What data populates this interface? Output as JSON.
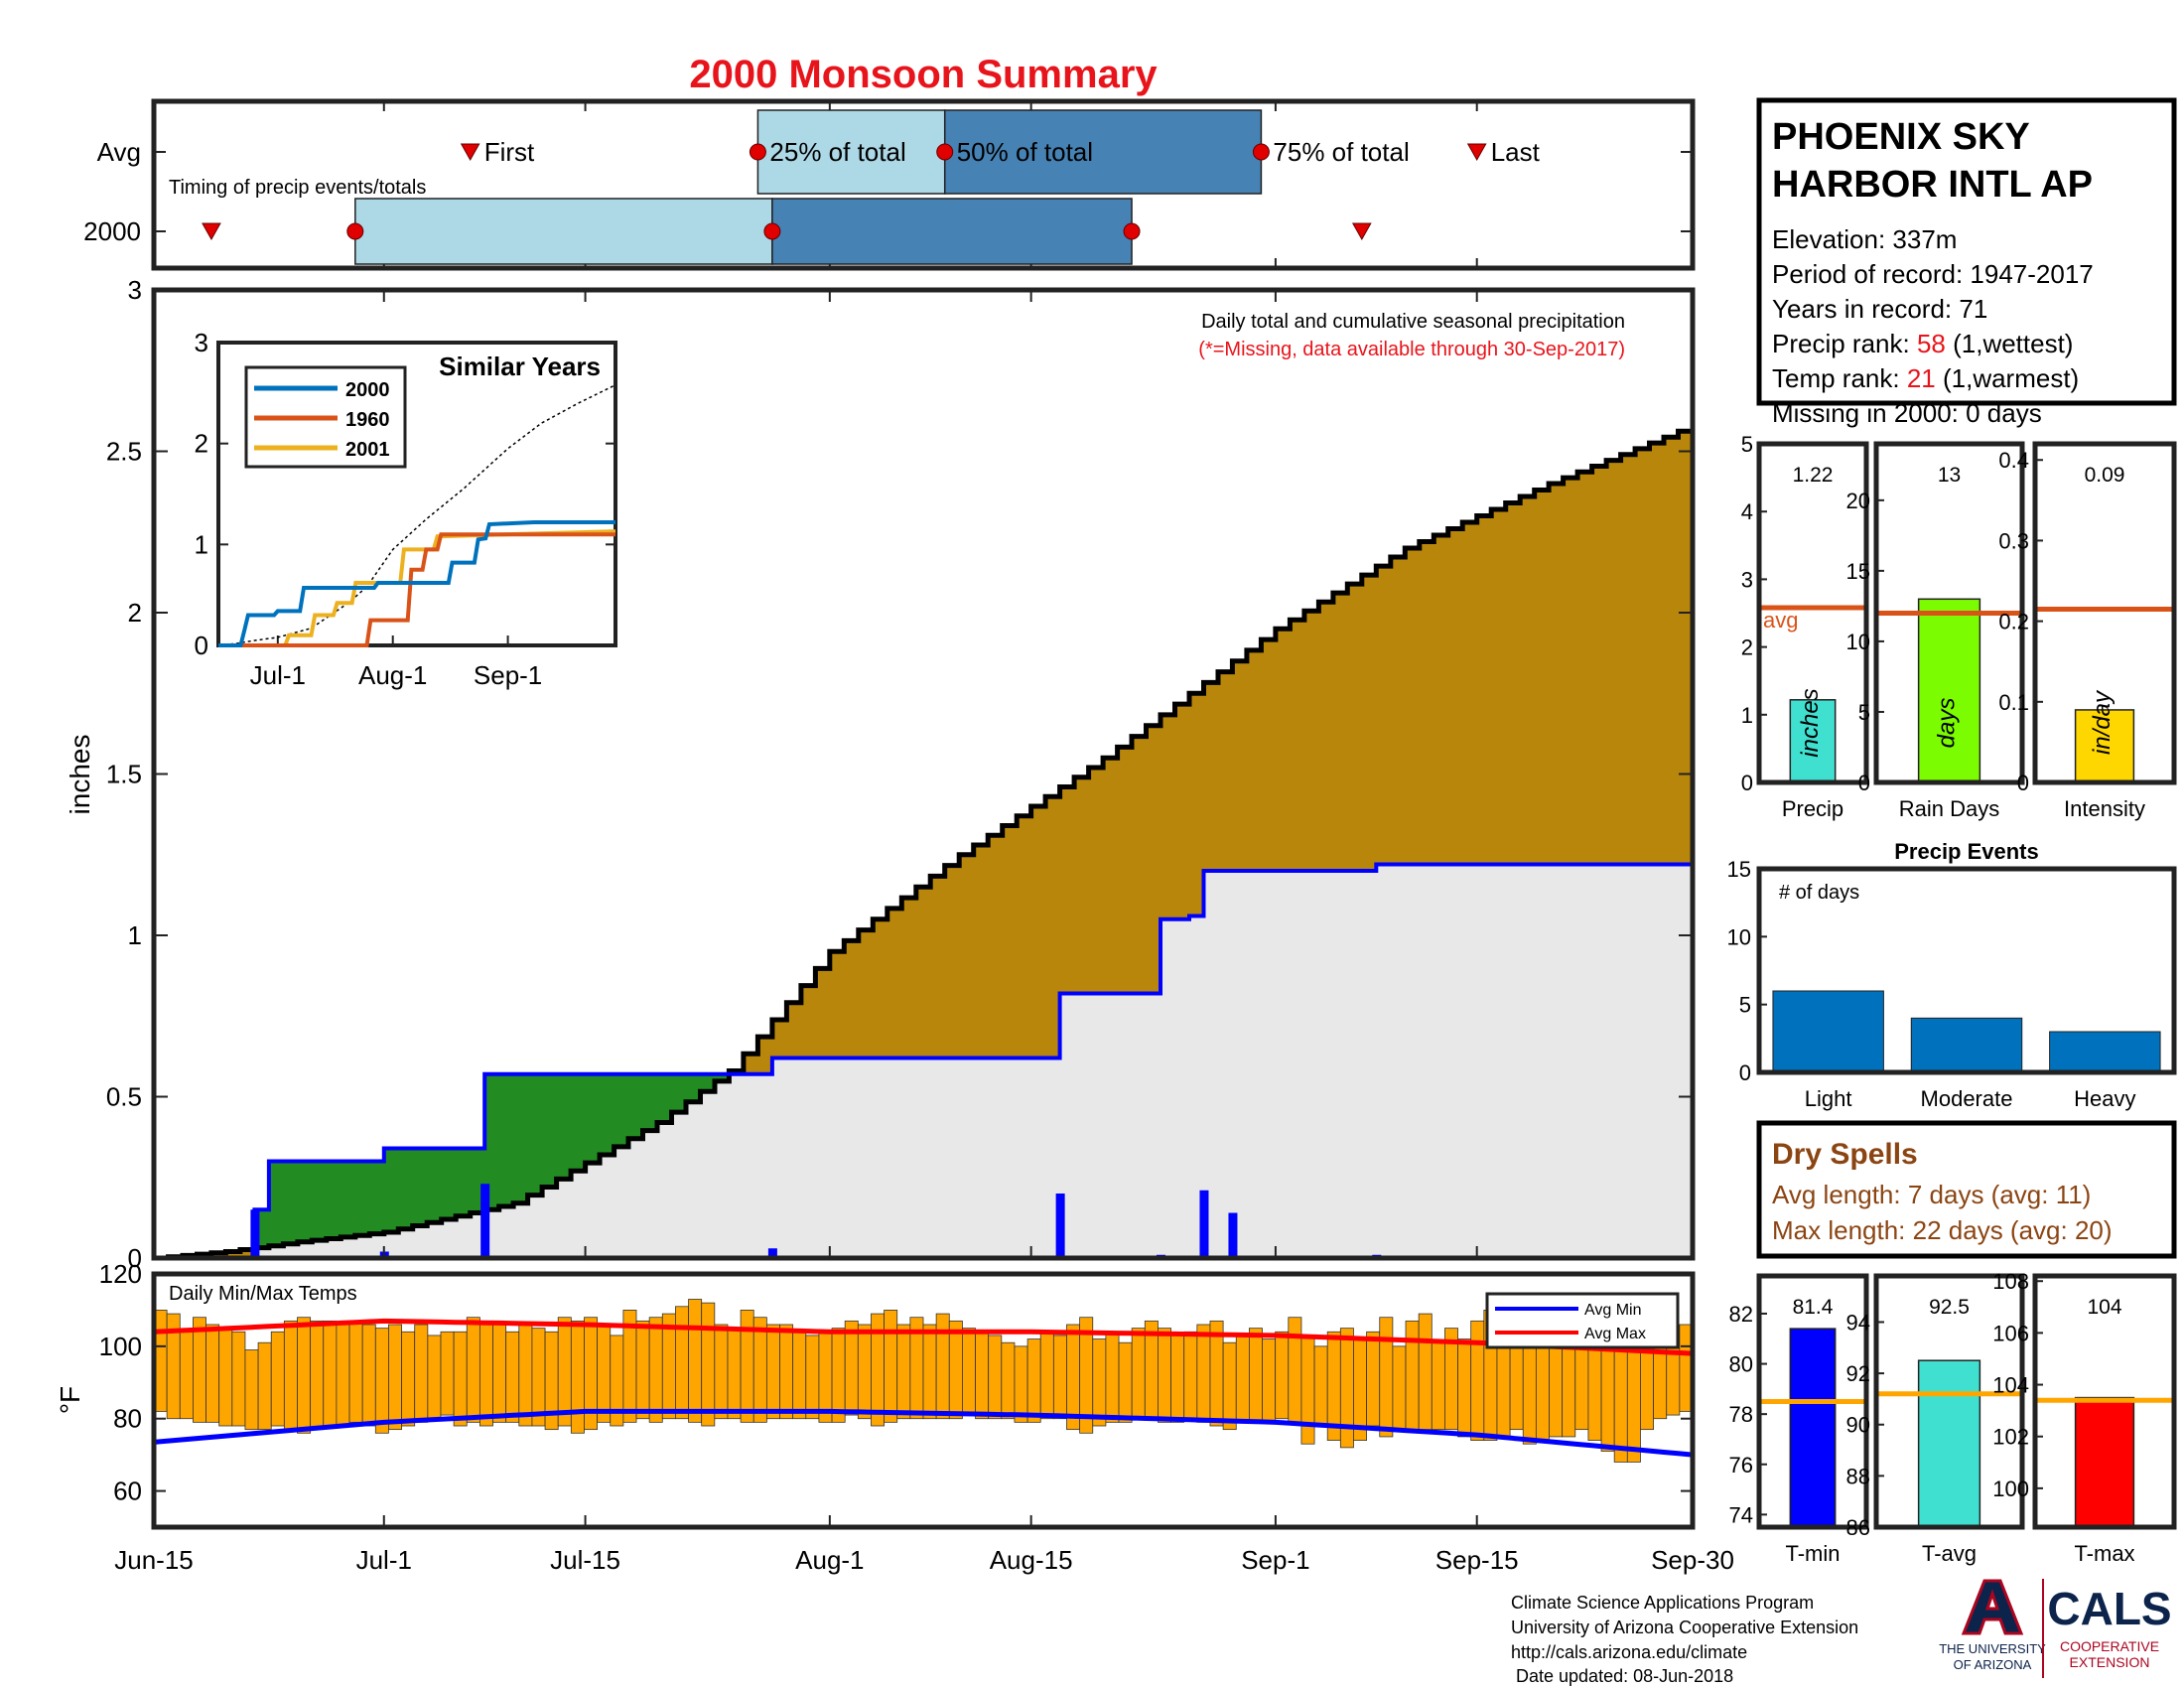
{
  "page": {
    "title": "2000 Monsoon Summary",
    "title_color": "#e8141b",
    "footer": {
      "lines": [
        "Climate Science Applications Program",
        "University of Arizona Cooperative Extension",
        "http://cals.arizona.edu/climate",
        " Date updated: 08-Jun-2018"
      ],
      "logo_left_text": [
        "THE UNIVERSITY",
        "OF ARIZONA"
      ],
      "logo_right_title": "CALS",
      "logo_right_sub": [
        "COOPERATIVE",
        "EXTENSION"
      ]
    }
  },
  "station": {
    "name_lines": [
      "PHOENIX SKY",
      "HARBOR INTL AP"
    ],
    "elevation": "Elevation: 337m",
    "period": "Period of record: 1947-2017",
    "years": "Years in record: 71",
    "precip_rank_label": "Precip rank: ",
    "precip_rank_value": "58",
    "precip_rank_note": " (1,wettest)",
    "temp_rank_label": "Temp rank: ",
    "temp_rank_value": "21",
    "temp_rank_note": " (1,warmest)",
    "missing": "Missing in 2000: 0 days"
  },
  "dry_spells": {
    "title": "Dry Spells",
    "avg_length": "Avg length: 7 days (avg: 11)",
    "max_length": "Max length: 22 days (avg: 20)",
    "color": "#8b4513"
  },
  "chart_data": [
    {
      "id": "timing",
      "type": "timeline",
      "annotation": "Timing of precip events/totals",
      "rows": [
        "Avg",
        "2000"
      ],
      "avg": {
        "first": "Jul-7",
        "q25": "Jul-27",
        "q50": "Aug-9",
        "q75": "Aug-31",
        "last": "Sep-15",
        "labels": {
          "first": "First",
          "q25": "25% of total",
          "q50": "50% of total",
          "q75": "75% of total",
          "last": "Last"
        }
      },
      "year": {
        "first": "Jun-19",
        "q25": "Jun-29",
        "q50": "Jul-28",
        "q75": "Aug-22",
        "last": "Sep-7"
      },
      "colors": {
        "light": "#add8e6",
        "dark": "#4682b4",
        "marker": "#e00000"
      }
    },
    {
      "id": "main-precip",
      "type": "area",
      "title": "Daily total and cumulative seasonal precipitation",
      "note": "(*=Missing, data available through 30-Sep-2017)",
      "ylabel": "inches",
      "ylim": [
        0,
        3
      ],
      "yticks": [
        "0",
        "0.5",
        "1",
        "1.5",
        "2",
        "2.5",
        "3"
      ],
      "xticks": [
        "Jun-15",
        "Jul-1",
        "Jul-15",
        "Aug-1",
        "Aug-15",
        "Sep-1",
        "Sep-15",
        "Sep-30"
      ],
      "avg_cumulative": {
        "dates": [
          "Jun-15",
          "Jun-20",
          "Jun-25",
          "Jul-1",
          "Jul-10",
          "Jul-20",
          "Jul-25",
          "Aug-1",
          "Aug-10",
          "Aug-20",
          "Sep-1",
          "Sep-10",
          "Sep-20",
          "Sep-30"
        ],
        "values": [
          0.0,
          0.02,
          0.05,
          0.08,
          0.17,
          0.42,
          0.58,
          0.95,
          1.25,
          1.55,
          1.95,
          2.2,
          2.4,
          2.58
        ]
      },
      "year_cumulative": {
        "dates": [
          "Jun-15",
          "Jun-21",
          "Jun-22",
          "Jun-23",
          "Jun-30",
          "Jul-1",
          "Jul-7",
          "Jul-8",
          "Jul-27",
          "Jul-28",
          "Aug-16",
          "Aug-17",
          "Aug-23",
          "Aug-24",
          "Aug-26",
          "Aug-27",
          "Sep-8",
          "Sep-30"
        ],
        "values": [
          0.0,
          0.0,
          0.15,
          0.3,
          0.3,
          0.34,
          0.34,
          0.57,
          0.57,
          0.62,
          0.62,
          0.82,
          0.82,
          1.05,
          1.06,
          1.2,
          1.22,
          1.22
        ]
      },
      "daily": {
        "dates": [
          "Jun-22",
          "Jul-1",
          "Jul-8",
          "Jul-28",
          "Aug-17",
          "Aug-24",
          "Aug-27",
          "Aug-29",
          "Sep-8"
        ],
        "values": [
          0.15,
          0.02,
          0.23,
          0.03,
          0.2,
          0.01,
          0.21,
          0.14,
          0.01
        ]
      },
      "colors": {
        "above_avg": "#228b22",
        "below_avg": "#b8860b",
        "season": "#e8e8e8",
        "year_line": "#0000ff",
        "avg_line": "#000000",
        "daily": "#0000ff"
      }
    },
    {
      "id": "similar-years",
      "type": "line",
      "title": "Similar Years",
      "ylim": [
        0,
        3
      ],
      "yticks": [
        "0",
        "1",
        "2",
        "3"
      ],
      "xticks": [
        "Jul-1",
        "Aug-1",
        "Sep-1"
      ],
      "series": [
        {
          "name": "2000",
          "color": "#0072bd",
          "dates": [
            "Jun-15",
            "Jun-21",
            "Jun-22",
            "Jun-23",
            "Jun-30",
            "Jul-1",
            "Jul-7",
            "Jul-8",
            "Jul-27",
            "Jul-28",
            "Aug-16",
            "Aug-17",
            "Aug-23",
            "Aug-24",
            "Aug-26",
            "Aug-27",
            "Sep-8",
            "Sep-30"
          ],
          "values": [
            0.0,
            0.0,
            0.15,
            0.3,
            0.3,
            0.34,
            0.34,
            0.57,
            0.57,
            0.62,
            0.62,
            0.82,
            0.82,
            1.05,
            1.06,
            1.2,
            1.22,
            1.22
          ]
        },
        {
          "name": "1960",
          "color": "#d95319",
          "dates": [
            "Jun-15",
            "Jul-25",
            "Jul-26",
            "Aug-5",
            "Aug-6",
            "Aug-9",
            "Aug-10",
            "Aug-13",
            "Aug-14",
            "Sep-30"
          ],
          "values": [
            0.0,
            0.0,
            0.25,
            0.25,
            0.75,
            0.75,
            0.95,
            0.95,
            1.1,
            1.1
          ]
        },
        {
          "name": "2001",
          "color": "#edb120",
          "dates": [
            "Jun-15",
            "Jul-3",
            "Jul-4",
            "Jul-10",
            "Jul-11",
            "Jul-16",
            "Jul-17",
            "Jul-21",
            "Jul-22",
            "Aug-3",
            "Aug-4",
            "Aug-12",
            "Aug-13",
            "Sep-30"
          ],
          "values": [
            0.0,
            0.0,
            0.1,
            0.1,
            0.3,
            0.3,
            0.42,
            0.42,
            0.62,
            0.62,
            0.95,
            0.95,
            1.08,
            1.13
          ]
        },
        {
          "name": "",
          "color": "#000000",
          "style": "dotted",
          "dates": [
            "Jun-15",
            "Jun-20",
            "Jun-25",
            "Jul-1",
            "Jul-10",
            "Jul-20",
            "Jul-25",
            "Aug-1",
            "Aug-10",
            "Aug-20",
            "Sep-1",
            "Sep-10",
            "Sep-20",
            "Sep-30"
          ],
          "values": [
            0.0,
            0.02,
            0.05,
            0.08,
            0.17,
            0.42,
            0.58,
            0.95,
            1.25,
            1.55,
            1.95,
            2.2,
            2.4,
            2.58
          ]
        }
      ]
    },
    {
      "id": "daily-temps",
      "type": "bar",
      "title": "Daily Min/Max Temps",
      "ylabel": "°F",
      "ylim": [
        50,
        120
      ],
      "yticks": [
        "60",
        "80",
        "100",
        "120"
      ],
      "start_date": "Jun-15",
      "bar_color": "#ffa500",
      "tmax": [
        110,
        109,
        104,
        108,
        106,
        105,
        104,
        99,
        101,
        104,
        107,
        108,
        107,
        107,
        106,
        107,
        106,
        105,
        106,
        104,
        106,
        103,
        104,
        104,
        108,
        107,
        106,
        104,
        106,
        105,
        104,
        108,
        107,
        108,
        106,
        103,
        110,
        107,
        108,
        109,
        111,
        113,
        112,
        106,
        105,
        110,
        108,
        106,
        106,
        104,
        103,
        104,
        105,
        107,
        106,
        109,
        110,
        106,
        108,
        106,
        109,
        107,
        105,
        104,
        103,
        101,
        100,
        102,
        104,
        103,
        106,
        108,
        102,
        104,
        101,
        105,
        107,
        105,
        103,
        104,
        106,
        107,
        101,
        103,
        105,
        102,
        104,
        108,
        103,
        100,
        104,
        105,
        102,
        104,
        108,
        100,
        107,
        109,
        101,
        105,
        102,
        107,
        110,
        103,
        108,
        105,
        102,
        101,
        104,
        103,
        100,
        108,
        105,
        102,
        101,
        106,
        104,
        106
      ],
      "tmin": [
        82,
        80,
        80,
        79,
        79,
        78,
        78,
        77,
        77,
        78,
        77,
        76,
        77,
        78,
        78,
        79,
        78,
        76,
        77,
        78,
        79,
        80,
        81,
        78,
        79,
        78,
        79,
        79,
        78,
        78,
        77,
        78,
        76,
        77,
        79,
        78,
        79,
        80,
        79,
        80,
        80,
        79,
        78,
        80,
        80,
        79,
        79,
        80,
        80,
        80,
        80,
        79,
        79,
        81,
        80,
        78,
        79,
        80,
        80,
        80,
        80,
        80,
        81,
        80,
        80,
        80,
        79,
        79,
        80,
        80,
        77,
        76,
        78,
        79,
        79,
        80,
        80,
        79,
        79,
        80,
        79,
        78,
        77,
        79,
        79,
        79,
        80,
        79,
        73,
        78,
        74,
        72,
        74,
        78,
        75,
        77,
        77,
        77,
        77,
        77,
        75,
        74,
        74,
        75,
        77,
        73,
        74,
        75,
        75,
        77,
        74,
        71,
        68,
        68,
        77,
        80,
        81,
        82
      ],
      "avg_max": {
        "dates": [
          "Jun-15",
          "Jul-1",
          "Jul-15",
          "Aug-1",
          "Aug-15",
          "Sep-1",
          "Sep-15",
          "Sep-30"
        ],
        "values": [
          104,
          107,
          106,
          104,
          104,
          103,
          101,
          98
        ]
      },
      "avg_min": {
        "dates": [
          "Jun-15",
          "Jul-1",
          "Jul-15",
          "Aug-1",
          "Aug-15",
          "Sep-1",
          "Sep-15",
          "Sep-30"
        ],
        "values": [
          73.5,
          79,
          82,
          82,
          81,
          79,
          75.5,
          70
        ]
      },
      "legend": [
        {
          "name": "Avg Min",
          "color": "#0000ff"
        },
        {
          "name": "Avg Max",
          "color": "#ff0000"
        }
      ]
    },
    {
      "id": "precip-stat",
      "type": "bar",
      "category": "Precip",
      "value": 1.22,
      "value_label": "1.22",
      "avg": 2.58,
      "avg_label": "avg",
      "unit": "inches",
      "ylim": [
        0,
        5
      ],
      "yticks": [
        "0",
        "1",
        "2",
        "3",
        "4",
        "5"
      ],
      "color": "#40e0d0",
      "avg_color": "#d95319"
    },
    {
      "id": "raindays-stat",
      "type": "bar",
      "category": "Rain Days",
      "value": 13,
      "value_label": "13",
      "avg": 12,
      "unit": "days",
      "ylim": [
        0,
        24
      ],
      "yticks": [
        "0",
        "5",
        "10",
        "15",
        "20"
      ],
      "color": "#7cfc00",
      "avg_color": "#d95319"
    },
    {
      "id": "intensity-stat",
      "type": "bar",
      "category": "Intensity",
      "value": 0.09,
      "value_label": "0.09",
      "avg": 0.215,
      "unit": "in/day",
      "ylim": [
        0,
        0.42
      ],
      "yticks": [
        "0",
        "0.1",
        "0.2",
        "0.3",
        "0.4"
      ],
      "color": "#ffd700",
      "avg_color": "#d95319"
    },
    {
      "id": "precip-events",
      "type": "bar",
      "title": "Precip Events",
      "annotation": "# of days",
      "categories": [
        "Light",
        "Moderate",
        "Heavy"
      ],
      "values": [
        6,
        4,
        3
      ],
      "ylim": [
        0,
        15
      ],
      "yticks": [
        "0",
        "5",
        "10",
        "15"
      ],
      "color": "#0072bd"
    },
    {
      "id": "tmin-stat",
      "type": "bar",
      "category": "T-min",
      "value": 81.4,
      "value_label": "81.4",
      "avg": 78.5,
      "ylim": [
        73.5,
        83.5
      ],
      "yticks": [
        "74",
        "76",
        "78",
        "80",
        "82"
      ],
      "color": "#0000ff",
      "avg_color": "#ffa500"
    },
    {
      "id": "tavg-stat",
      "type": "bar",
      "category": "T-avg",
      "value": 92.5,
      "value_label": "92.5",
      "avg": 91.2,
      "ylim": [
        86,
        95.8
      ],
      "yticks": [
        "86",
        "88",
        "90",
        "92",
        "94"
      ],
      "color": "#40e0d0",
      "avg_color": "#ffa500"
    },
    {
      "id": "tmax-stat",
      "type": "bar",
      "category": "T-max",
      "value": 103.5,
      "value_label": "104",
      "avg": 103.4,
      "ylim": [
        98.5,
        108.2
      ],
      "yticks": [
        "100",
        "102",
        "104",
        "106",
        "108"
      ],
      "color": "#ff0000",
      "avg_color": "#ffa500"
    }
  ]
}
